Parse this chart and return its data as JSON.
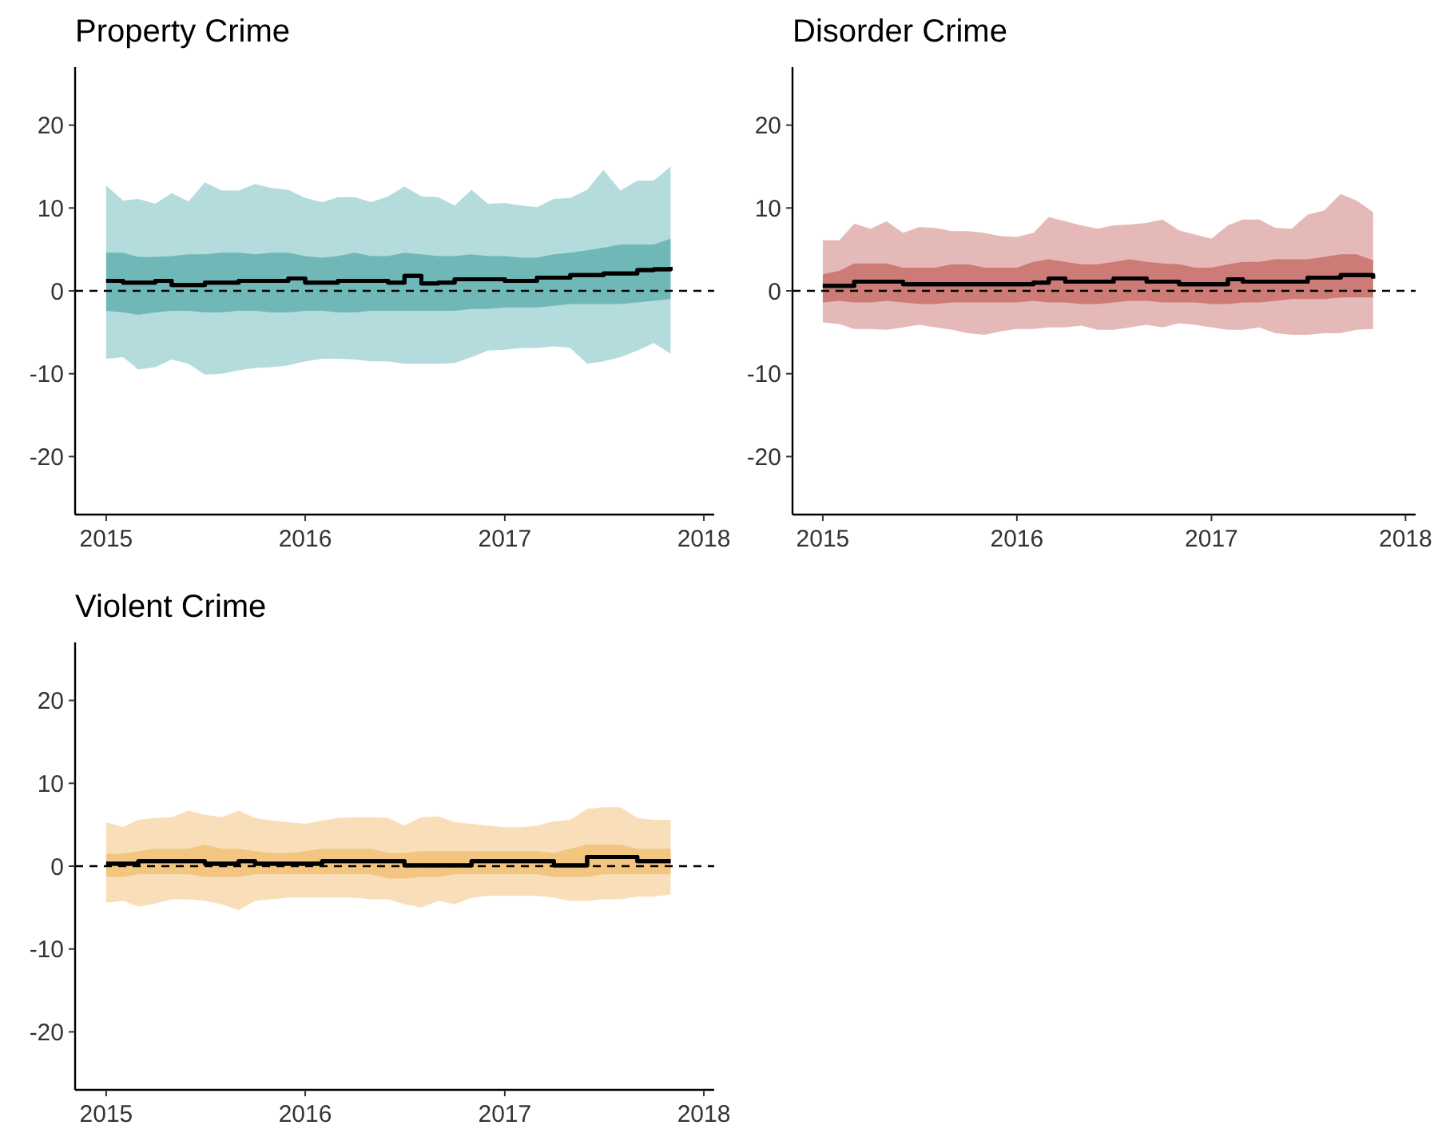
{
  "chart_data": [
    {
      "type": "line",
      "title": "Property Crime",
      "xlim": [
        "2014-11-05",
        "2018-01-20"
      ],
      "xticks": [
        "2015",
        "2016",
        "2017",
        "2018"
      ],
      "ylim": [
        -27,
        27
      ],
      "yticks": [
        -20,
        -10,
        0,
        10,
        20
      ],
      "grid": false,
      "colors": [
        "#b5dcdd",
        "#70b8b7"
      ],
      "x": [
        "2015-01",
        "2015-02",
        "2015-03",
        "2015-04",
        "2015-05",
        "2015-06",
        "2015-07",
        "2015-08",
        "2015-09",
        "2015-10",
        "2015-11",
        "2015-12",
        "2016-01",
        "2016-02",
        "2016-03",
        "2016-04",
        "2016-05",
        "2016-06",
        "2016-07",
        "2016-08",
        "2016-09",
        "2016-10",
        "2016-11",
        "2016-12",
        "2017-01",
        "2017-02",
        "2017-03",
        "2017-04",
        "2017-05",
        "2017-06",
        "2017-07",
        "2017-08",
        "2017-09",
        "2017-10",
        "2017-11"
      ],
      "ref_lines": [
        {
          "axis": "y",
          "value": 0,
          "color": "#000000",
          "line_style": "dashed"
        }
      ],
      "series": [
        {
          "type": "step",
          "color": "#000000",
          "values": [
            1.2,
            1.0,
            1.0,
            1.2,
            0.7,
            0.7,
            1.0,
            1.0,
            1.2,
            1.2,
            1.2,
            1.5,
            1.0,
            1.0,
            1.2,
            1.2,
            1.2,
            1.0,
            1.8,
            0.9,
            1.0,
            1.4,
            1.4,
            1.4,
            1.2,
            1.2,
            1.6,
            1.6,
            1.9,
            1.9,
            2.1,
            2.1,
            2.5,
            2.6,
            2.9
          ],
          "upper": [
            12.7,
            10.9,
            11.1,
            10.5,
            11.8,
            10.8,
            13.1,
            12.1,
            12.1,
            12.9,
            12.4,
            12.2,
            11.2,
            10.7,
            11.3,
            11.3,
            10.7,
            11.4,
            12.6,
            11.4,
            11.3,
            10.3,
            12.2,
            10.5,
            10.6,
            10.3,
            10.1,
            11.1,
            11.2,
            12.2,
            14.6,
            12.1,
            13.3,
            13.3,
            15.0
          ],
          "lower": [
            -8.2,
            -8.0,
            -9.5,
            -9.2,
            -8.3,
            -8.8,
            -10.1,
            -10.0,
            -9.6,
            -9.3,
            -9.2,
            -9.0,
            -8.5,
            -8.2,
            -8.2,
            -8.3,
            -8.5,
            -8.5,
            -8.8,
            -8.8,
            -8.8,
            -8.7,
            -8.0,
            -7.2,
            -7.1,
            -6.9,
            -6.9,
            -6.7,
            -6.9,
            -8.8,
            -8.5,
            -8.0,
            -7.2,
            -6.3,
            -7.6
          ]
        },
        {
          "type": "step",
          "color": "#000000",
          "values": [
            1.2,
            1.0,
            1.0,
            1.2,
            0.7,
            0.7,
            1.0,
            1.0,
            1.2,
            1.2,
            1.2,
            1.5,
            1.0,
            1.0,
            1.2,
            1.2,
            1.2,
            1.0,
            1.8,
            0.9,
            1.0,
            1.4,
            1.4,
            1.4,
            1.2,
            1.2,
            1.6,
            1.6,
            1.9,
            1.9,
            2.1,
            2.1,
            2.5,
            2.6,
            2.9
          ],
          "upper": [
            4.6,
            4.6,
            4.1,
            4.1,
            4.2,
            4.4,
            4.4,
            4.6,
            4.6,
            4.4,
            4.6,
            4.6,
            4.2,
            4.0,
            4.2,
            4.6,
            4.2,
            4.2,
            4.6,
            4.4,
            4.2,
            4.2,
            4.4,
            4.2,
            4.2,
            4.0,
            4.0,
            4.4,
            4.6,
            4.9,
            5.2,
            5.6,
            5.6,
            5.6,
            6.3
          ],
          "lower": [
            -2.4,
            -2.6,
            -2.9,
            -2.6,
            -2.4,
            -2.4,
            -2.6,
            -2.6,
            -2.4,
            -2.4,
            -2.6,
            -2.6,
            -2.4,
            -2.4,
            -2.6,
            -2.6,
            -2.4,
            -2.4,
            -2.4,
            -2.4,
            -2.4,
            -2.4,
            -2.2,
            -2.2,
            -2.0,
            -2.0,
            -2.0,
            -1.8,
            -1.6,
            -1.6,
            -1.6,
            -1.6,
            -1.4,
            -1.2,
            -1.0
          ]
        }
      ]
    },
    {
      "type": "line",
      "title": "Disorder Crime",
      "xlim": [
        "2014-11-05",
        "2018-01-20"
      ],
      "xticks": [
        "2015",
        "2016",
        "2017",
        "2018"
      ],
      "ylim": [
        -27,
        27
      ],
      "yticks": [
        -20,
        -10,
        0,
        10,
        20
      ],
      "grid": false,
      "colors": [
        "#e5b9b7",
        "#cc7b76"
      ],
      "x": [
        "2015-01",
        "2015-02",
        "2015-03",
        "2015-04",
        "2015-05",
        "2015-06",
        "2015-07",
        "2015-08",
        "2015-09",
        "2015-10",
        "2015-11",
        "2015-12",
        "2016-01",
        "2016-02",
        "2016-03",
        "2016-04",
        "2016-05",
        "2016-06",
        "2016-07",
        "2016-08",
        "2016-09",
        "2016-10",
        "2016-11",
        "2016-12",
        "2017-01",
        "2017-02",
        "2017-03",
        "2017-04",
        "2017-05",
        "2017-06",
        "2017-07",
        "2017-08",
        "2017-09",
        "2017-10",
        "2017-11"
      ],
      "ref_lines": [
        {
          "axis": "y",
          "value": 0,
          "color": "#000000",
          "line_style": "dashed"
        }
      ],
      "series": [
        {
          "type": "step",
          "color": "#000000",
          "values": [
            0.6,
            0.6,
            1.1,
            1.1,
            1.1,
            0.8,
            0.8,
            0.8,
            0.8,
            0.8,
            0.8,
            0.8,
            0.8,
            1.0,
            1.5,
            1.1,
            1.1,
            1.1,
            1.5,
            1.5,
            1.1,
            1.1,
            0.8,
            0.8,
            0.8,
            1.4,
            1.1,
            1.1,
            1.1,
            1.1,
            1.6,
            1.6,
            1.9,
            1.9,
            1.5
          ],
          "upper": [
            6.1,
            6.1,
            8.1,
            7.5,
            8.4,
            7.0,
            7.7,
            7.6,
            7.2,
            7.2,
            7.0,
            6.6,
            6.5,
            7.0,
            8.9,
            8.4,
            7.9,
            7.5,
            7.9,
            8.0,
            8.2,
            8.6,
            7.3,
            6.8,
            6.3,
            7.9,
            8.6,
            8.6,
            7.6,
            7.5,
            9.2,
            9.7,
            11.7,
            10.9,
            9.5
          ],
          "lower": [
            -3.8,
            -4.0,
            -4.6,
            -4.6,
            -4.7,
            -4.4,
            -4.1,
            -4.4,
            -4.7,
            -5.1,
            -5.3,
            -4.9,
            -4.6,
            -4.6,
            -4.4,
            -4.4,
            -4.2,
            -4.7,
            -4.7,
            -4.4,
            -4.1,
            -4.4,
            -3.9,
            -4.1,
            -4.4,
            -4.7,
            -4.7,
            -4.4,
            -5.1,
            -5.3,
            -5.3,
            -5.1,
            -5.1,
            -4.7,
            -4.6
          ]
        },
        {
          "type": "step",
          "color": "#000000",
          "values": [
            0.6,
            0.6,
            1.1,
            1.1,
            1.1,
            0.8,
            0.8,
            0.8,
            0.8,
            0.8,
            0.8,
            0.8,
            0.8,
            1.0,
            1.5,
            1.1,
            1.1,
            1.1,
            1.5,
            1.5,
            1.1,
            1.1,
            0.8,
            0.8,
            0.8,
            1.4,
            1.1,
            1.1,
            1.1,
            1.1,
            1.6,
            1.6,
            1.9,
            1.9,
            1.5
          ],
          "upper": [
            2.0,
            2.4,
            3.3,
            3.3,
            3.3,
            2.8,
            2.8,
            2.8,
            3.2,
            3.2,
            2.8,
            2.8,
            2.8,
            3.5,
            3.8,
            3.5,
            3.2,
            3.2,
            3.5,
            3.8,
            3.5,
            3.3,
            3.2,
            2.8,
            2.8,
            3.2,
            3.5,
            3.5,
            3.8,
            3.8,
            3.8,
            4.1,
            4.4,
            4.4,
            3.7
          ],
          "lower": [
            -1.4,
            -1.2,
            -1.4,
            -1.4,
            -1.2,
            -1.4,
            -1.6,
            -1.6,
            -1.4,
            -1.4,
            -1.4,
            -1.4,
            -1.4,
            -1.2,
            -1.4,
            -1.4,
            -1.6,
            -1.6,
            -1.4,
            -1.2,
            -1.2,
            -1.4,
            -1.4,
            -1.4,
            -1.6,
            -1.6,
            -1.4,
            -1.4,
            -1.2,
            -1.0,
            -1.0,
            -1.0,
            -0.8,
            -0.8,
            -0.8
          ]
        }
      ]
    },
    {
      "type": "line",
      "title": "Violent Crime",
      "xlim": [
        "2014-11-05",
        "2018-01-20"
      ],
      "xticks": [
        "2015",
        "2016",
        "2017",
        "2018"
      ],
      "ylim": [
        -27,
        27
      ],
      "yticks": [
        -20,
        -10,
        0,
        10,
        20
      ],
      "grid": false,
      "colors": [
        "#f9dfb9",
        "#f2c581"
      ],
      "x": [
        "2015-01",
        "2015-02",
        "2015-03",
        "2015-04",
        "2015-05",
        "2015-06",
        "2015-07",
        "2015-08",
        "2015-09",
        "2015-10",
        "2015-11",
        "2015-12",
        "2016-01",
        "2016-02",
        "2016-03",
        "2016-04",
        "2016-05",
        "2016-06",
        "2016-07",
        "2016-08",
        "2016-09",
        "2016-10",
        "2016-11",
        "2016-12",
        "2017-01",
        "2017-02",
        "2017-03",
        "2017-04",
        "2017-05",
        "2017-06",
        "2017-07",
        "2017-08",
        "2017-09",
        "2017-10",
        "2017-11"
      ],
      "ref_lines": [
        {
          "axis": "y",
          "value": 0,
          "color": "#000000",
          "line_style": "dashed"
        }
      ],
      "series": [
        {
          "type": "step",
          "color": "#000000",
          "values": [
            0.3,
            0.3,
            0.6,
            0.6,
            0.6,
            0.6,
            0.3,
            0.3,
            0.6,
            0.3,
            0.3,
            0.3,
            0.3,
            0.6,
            0.6,
            0.6,
            0.6,
            0.6,
            0.1,
            0.1,
            0.1,
            0.1,
            0.6,
            0.6,
            0.6,
            0.6,
            0.6,
            0.1,
            0.1,
            1.1,
            1.1,
            1.1,
            0.6,
            0.6,
            0.6
          ],
          "upper": [
            5.3,
            4.7,
            5.6,
            5.8,
            5.9,
            6.7,
            6.2,
            5.9,
            6.7,
            5.8,
            5.5,
            5.3,
            5.1,
            5.5,
            5.8,
            5.9,
            5.9,
            5.8,
            4.9,
            5.9,
            6.0,
            5.3,
            5.1,
            4.9,
            4.7,
            4.7,
            4.9,
            5.4,
            5.6,
            6.9,
            7.1,
            7.1,
            5.8,
            5.6,
            5.6
          ],
          "lower": [
            -4.4,
            -4.2,
            -4.9,
            -4.5,
            -4.0,
            -4.0,
            -4.2,
            -4.6,
            -5.3,
            -4.2,
            -4.0,
            -3.8,
            -3.8,
            -3.8,
            -3.8,
            -3.8,
            -4.0,
            -4.0,
            -4.6,
            -5.0,
            -4.2,
            -4.6,
            -3.8,
            -3.6,
            -3.6,
            -3.6,
            -3.6,
            -3.8,
            -4.2,
            -4.2,
            -4.0,
            -4.0,
            -3.7,
            -3.7,
            -3.4
          ]
        },
        {
          "type": "step",
          "color": "#000000",
          "values": [
            0.3,
            0.3,
            0.6,
            0.6,
            0.6,
            0.6,
            0.3,
            0.3,
            0.6,
            0.3,
            0.3,
            0.3,
            0.3,
            0.6,
            0.6,
            0.6,
            0.6,
            0.6,
            0.1,
            0.1,
            0.1,
            0.1,
            0.6,
            0.6,
            0.6,
            0.6,
            0.6,
            0.1,
            0.1,
            1.1,
            1.1,
            1.1,
            0.6,
            0.6,
            0.6
          ],
          "upper": [
            1.5,
            1.5,
            1.8,
            2.1,
            2.1,
            2.1,
            2.6,
            2.1,
            2.1,
            1.8,
            1.6,
            1.6,
            1.8,
            2.1,
            2.1,
            2.1,
            2.1,
            1.6,
            1.6,
            1.8,
            1.8,
            1.8,
            1.8,
            1.8,
            1.8,
            1.8,
            1.8,
            1.6,
            2.1,
            2.6,
            2.6,
            2.6,
            2.1,
            2.1,
            2.1
          ],
          "lower": [
            -1.3,
            -1.3,
            -1.0,
            -1.0,
            -1.0,
            -1.0,
            -1.3,
            -1.3,
            -1.3,
            -1.0,
            -1.0,
            -1.0,
            -1.0,
            -1.0,
            -1.0,
            -1.0,
            -1.0,
            -1.5,
            -1.5,
            -1.3,
            -1.3,
            -1.0,
            -1.0,
            -1.0,
            -1.0,
            -1.0,
            -1.0,
            -1.3,
            -1.3,
            -1.3,
            -1.0,
            -1.0,
            -1.0,
            -1.0,
            -1.0
          ]
        }
      ]
    }
  ]
}
